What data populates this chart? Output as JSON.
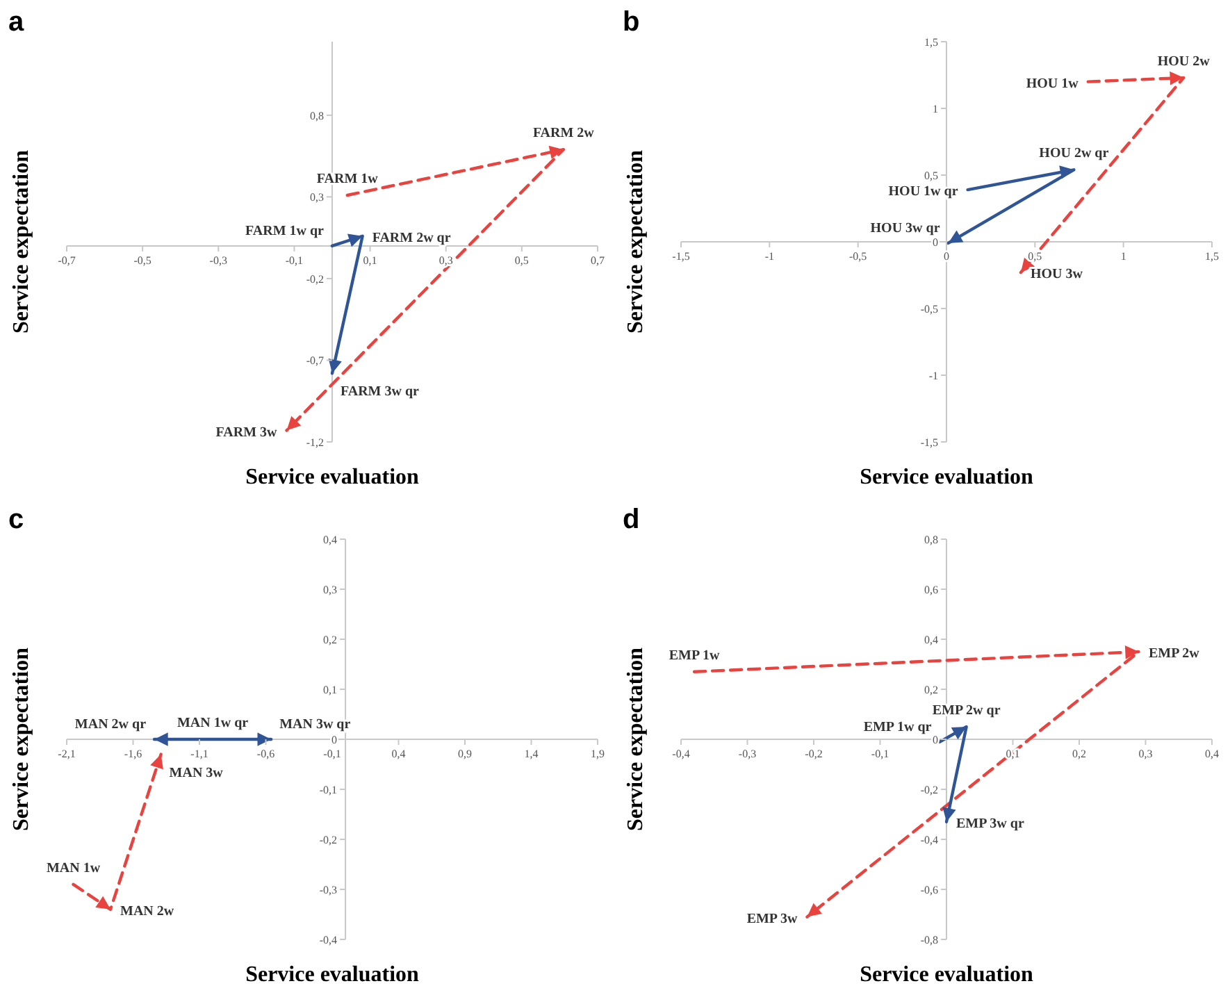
{
  "chart_data": [
    {
      "type": "line",
      "title": "a",
      "xlabel": "Service evaluation",
      "ylabel": "Service expectation",
      "xlim": [
        -0.7,
        0.7
      ],
      "ylim": [
        -1.2,
        1.25
      ],
      "xticks": [
        {
          "value": -0.7,
          "label": "-0,7"
        },
        {
          "value": -0.5,
          "label": "-0,5"
        },
        {
          "value": -0.3,
          "label": "-0,3"
        },
        {
          "value": -0.1,
          "label": "-0,1"
        },
        {
          "value": 0.1,
          "label": "0,1"
        },
        {
          "value": 0.3,
          "label": "0,3"
        },
        {
          "value": 0.5,
          "label": "0,5"
        },
        {
          "value": 0.7,
          "label": "0,7"
        }
      ],
      "yticks": [
        {
          "value": -1.2,
          "label": "-1,2"
        },
        {
          "value": -0.7,
          "label": "-0,7"
        },
        {
          "value": -0.2,
          "label": "-0,2"
        },
        {
          "value": 0.3,
          "label": "0,3"
        },
        {
          "value": 0.8,
          "label": "0,8"
        }
      ],
      "series": [
        {
          "color": "#e8433f",
          "line_style": "dashed",
          "x": [
            0.04,
            0.61,
            -0.12
          ],
          "values": [
            0.31,
            0.59,
            -1.13
          ]
        },
        {
          "color": "#2f5597",
          "line_style": "solid",
          "x": [
            0,
            0.08,
            0
          ],
          "values": [
            0,
            0.06,
            -0.78
          ]
        }
      ],
      "annotations": [
        {
          "text": "FARM 1w",
          "x": 0.04,
          "y": 0.31
        },
        {
          "text": "FARM 2w",
          "x": 0.61,
          "y": 0.59
        },
        {
          "text": "FARM 3w",
          "x": -0.12,
          "y": -1.13
        },
        {
          "text": "FARM 1w qr",
          "x": 0,
          "y": 0
        },
        {
          "text": "FARM 2w qr",
          "x": 0.08,
          "y": 0.06
        },
        {
          "text": "FARM 3w qr",
          "x": 0,
          "y": -0.78
        }
      ]
    },
    {
      "type": "line",
      "title": "b",
      "xlabel": "Service evaluation",
      "ylabel": "Service expectation",
      "xlim": [
        -1.5,
        1.5
      ],
      "ylim": [
        -1.5,
        1.5
      ],
      "xticks": [
        {
          "value": -1.5,
          "label": "-1,5"
        },
        -1,
        {
          "value": -0.5,
          "label": "-0,5"
        },
        0,
        {
          "value": 0.5,
          "label": "0,5"
        },
        1,
        {
          "value": 1.5,
          "label": "1,5"
        }
      ],
      "yticks": [
        {
          "value": -1.5,
          "label": "-1,5"
        },
        -1,
        {
          "value": -0.5,
          "label": "-0,5"
        },
        0,
        {
          "value": 0.5,
          "label": "0,5"
        },
        1,
        {
          "value": 1.5,
          "label": "1,5"
        }
      ],
      "series": [
        {
          "color": "#e8433f",
          "line_style": "dashed",
          "x": [
            0.8,
            1.34,
            0.42
          ],
          "values": [
            1.2,
            1.23,
            -0.23
          ]
        },
        {
          "color": "#2f5597",
          "line_style": "solid",
          "x": [
            0.12,
            0.72,
            0.01
          ],
          "values": [
            0.39,
            0.54,
            -0.01
          ]
        }
      ],
      "annotations": [
        {
          "text": "HOU 1w",
          "x": 0.8,
          "y": 1.2
        },
        {
          "text": "HOU 2w",
          "x": 1.34,
          "y": 1.23
        },
        {
          "text": "HOU 3w",
          "x": 0.42,
          "y": -0.23
        },
        {
          "text": "HOU 1w qr",
          "x": 0.12,
          "y": 0.39
        },
        {
          "text": "HOU 2w qr",
          "x": 0.72,
          "y": 0.54
        },
        {
          "text": "HOU 3w qr",
          "x": 0.01,
          "y": -0.01
        }
      ]
    },
    {
      "type": "line",
      "title": "c",
      "xlabel": "Service evaluation",
      "ylabel": "Service expectation",
      "xlim": [
        -2.1,
        1.9
      ],
      "ylim": [
        -0.4,
        0.4
      ],
      "xticks": [
        {
          "value": -2.1,
          "label": "-2,1"
        },
        {
          "value": -1.6,
          "label": "-1,6"
        },
        {
          "value": -1.1,
          "label": "-1,1"
        },
        {
          "value": -0.6,
          "label": "-0,6"
        },
        {
          "value": -0.1,
          "label": "-0,1"
        },
        {
          "value": 0.4,
          "label": "0,4"
        },
        {
          "value": 0.9,
          "label": "0,9"
        },
        {
          "value": 1.4,
          "label": "1,4"
        },
        {
          "value": 1.9,
          "label": "1,9"
        }
      ],
      "yticks": [
        {
          "value": -0.4,
          "label": "-0,4"
        },
        {
          "value": -0.3,
          "label": "-0,3"
        },
        {
          "value": -0.2,
          "label": "-0,2"
        },
        {
          "value": -0.1,
          "label": "-0,1"
        },
        0,
        {
          "value": 0.1,
          "label": "0,1"
        },
        {
          "value": 0.2,
          "label": "0,2"
        },
        {
          "value": 0.3,
          "label": "0,3"
        },
        {
          "value": 0.4,
          "label": "0,4"
        }
      ],
      "series": [
        {
          "color": "#e8433f",
          "line_style": "dashed",
          "x": [
            -2.05,
            -1.77,
            -1.39
          ],
          "values": [
            -0.29,
            -0.34,
            -0.03
          ]
        },
        {
          "color": "#2f5597",
          "line_style": "solid",
          "x": [
            -1.0,
            -1.44,
            -0.56
          ],
          "values": [
            0,
            0,
            0
          ]
        }
      ],
      "annotations": [
        {
          "text": "MAN 1w",
          "x": -2.05,
          "y": -0.29
        },
        {
          "text": "MAN 2w",
          "x": -1.77,
          "y": -0.34
        },
        {
          "text": "MAN 3w",
          "x": -1.39,
          "y": -0.03
        },
        {
          "text": "MAN 1w qr",
          "x": -1.0,
          "y": 0
        },
        {
          "text": "MAN 2w qr",
          "x": -1.44,
          "y": 0
        },
        {
          "text": "MAN 3w qr",
          "x": -0.56,
          "y": 0
        }
      ]
    },
    {
      "type": "line",
      "title": "d",
      "xlabel": "Service evaluation",
      "ylabel": "Service expectation",
      "xlim": [
        -0.4,
        0.4
      ],
      "ylim": [
        -0.8,
        0.8
      ],
      "xticks": [
        {
          "value": -0.4,
          "label": "-0,4"
        },
        {
          "value": -0.3,
          "label": "-0,3"
        },
        {
          "value": -0.2,
          "label": "-0,2"
        },
        {
          "value": -0.1,
          "label": "-0,1"
        },
        {
          "value": 0.1,
          "label": "0,1"
        },
        {
          "value": 0.2,
          "label": "0,2"
        },
        {
          "value": 0.3,
          "label": "0,3"
        },
        {
          "value": 0.4,
          "label": "0,4"
        }
      ],
      "yticks": [
        {
          "value": -0.8,
          "label": "-0,8"
        },
        {
          "value": -0.6,
          "label": "-0,6"
        },
        {
          "value": -0.4,
          "label": "-0,4"
        },
        {
          "value": -0.2,
          "label": "-0,2"
        },
        0,
        {
          "value": 0.2,
          "label": "0,2"
        },
        {
          "value": 0.4,
          "label": "0,4"
        },
        {
          "value": 0.6,
          "label": "0,6"
        },
        {
          "value": 0.8,
          "label": "0,8"
        }
      ],
      "series": [
        {
          "color": "#e8433f",
          "line_style": "dashed",
          "x": [
            -0.38,
            0.29,
            -0.21
          ],
          "values": [
            0.27,
            0.35,
            -0.71
          ]
        },
        {
          "color": "#2f5597",
          "line_style": "solid",
          "x": [
            -0.01,
            0.03,
            0
          ],
          "values": [
            -0.01,
            0.05,
            -0.33
          ]
        }
      ],
      "annotations": [
        {
          "text": "EMP 1w",
          "x": -0.38,
          "y": 0.27
        },
        {
          "text": "EMP 2w",
          "x": 0.29,
          "y": 0.35
        },
        {
          "text": "EMP 3w",
          "x": -0.21,
          "y": -0.71
        },
        {
          "text": "EMP 1w qr",
          "x": -0.01,
          "y": -0.01
        },
        {
          "text": "EMP 2w qr",
          "x": 0.03,
          "y": 0.05
        },
        {
          "text": "EMP 3w qr",
          "x": 0,
          "y": -0.33
        }
      ]
    }
  ]
}
